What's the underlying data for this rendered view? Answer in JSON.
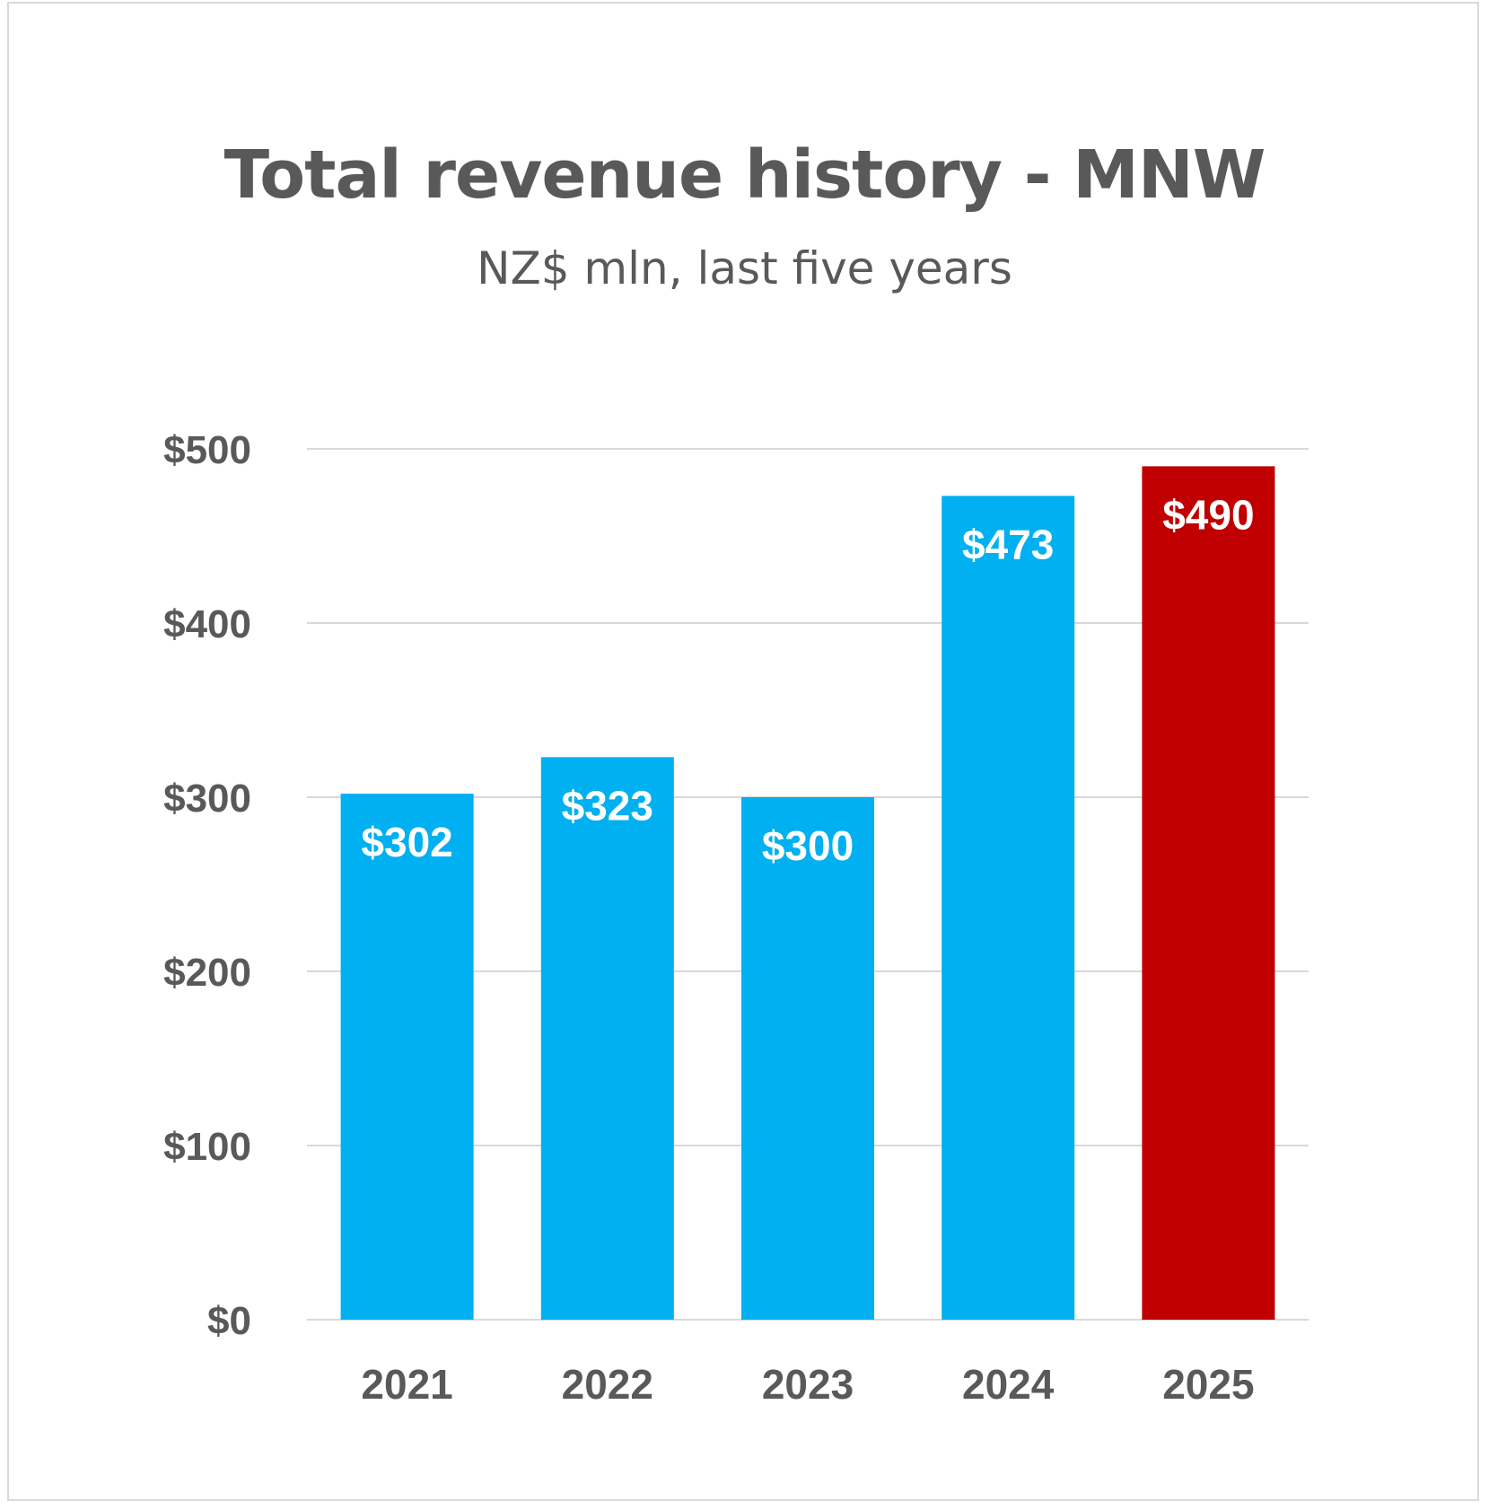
{
  "chart_data": {
    "type": "bar",
    "title": "Total revenue history - MNW",
    "subtitle": "NZ$ mln, last five years",
    "xlabel": "",
    "ylabel": "",
    "categories": [
      "2021",
      "2022",
      "2023",
      "2024",
      "2025"
    ],
    "values": [
      302,
      323,
      300,
      473,
      490
    ],
    "data_labels": [
      "$302",
      "$323",
      "$300",
      "$473",
      "$490"
    ],
    "bar_colors": [
      "#00b0f0",
      "#00b0f0",
      "#00b0f0",
      "#00b0f0",
      "#c00000"
    ],
    "ylim": [
      0,
      500
    ],
    "yticks": [
      0,
      100,
      200,
      300,
      400,
      500
    ],
    "ytick_labels": [
      "$0",
      "$100",
      "$200",
      "$300",
      "$400",
      "$500"
    ],
    "grid": true,
    "legend": "none"
  }
}
